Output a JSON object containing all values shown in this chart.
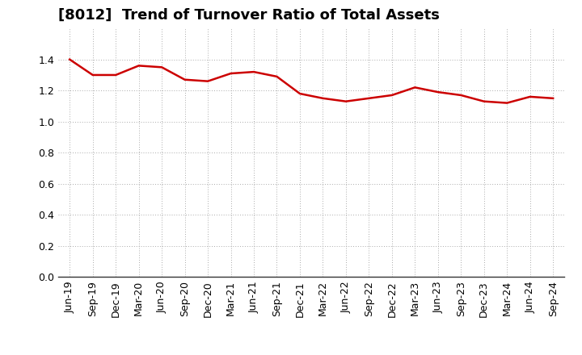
{
  "title": "[8012]  Trend of Turnover Ratio of Total Assets",
  "line_color": "#cc0000",
  "line_width": 1.8,
  "background_color": "#ffffff",
  "grid_color": "#aaaaaa",
  "ylim": [
    0.0,
    1.6
  ],
  "yticks": [
    0.0,
    0.2,
    0.4,
    0.6,
    0.8,
    1.0,
    1.2,
    1.4
  ],
  "xlabel": "",
  "ylabel": "",
  "labels": [
    "Jun-19",
    "Sep-19",
    "Dec-19",
    "Mar-20",
    "Jun-20",
    "Sep-20",
    "Dec-20",
    "Mar-21",
    "Jun-21",
    "Sep-21",
    "Dec-21",
    "Mar-22",
    "Jun-22",
    "Sep-22",
    "Dec-22",
    "Mar-23",
    "Jun-23",
    "Sep-23",
    "Dec-23",
    "Mar-24",
    "Jun-24",
    "Sep-24"
  ],
  "values": [
    1.4,
    1.3,
    1.3,
    1.36,
    1.35,
    1.27,
    1.26,
    1.31,
    1.32,
    1.29,
    1.18,
    1.15,
    1.13,
    1.15,
    1.17,
    1.22,
    1.19,
    1.17,
    1.13,
    1.12,
    1.16,
    1.15
  ],
  "title_fontsize": 13,
  "tick_fontsize": 9
}
